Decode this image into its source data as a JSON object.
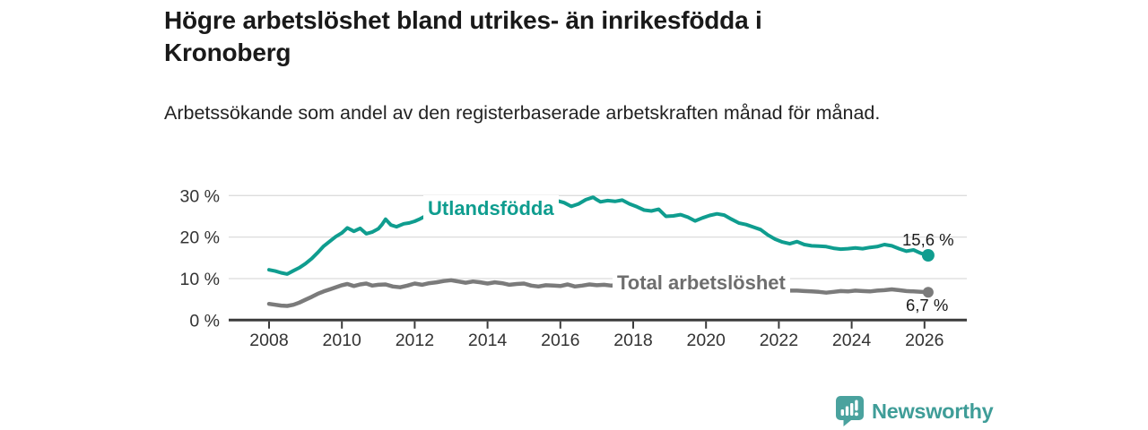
{
  "header": {
    "title": "Högre arbetslöshet bland utrikes- än inrikesfödda i Kronoberg",
    "subtitle": "Arbetssökande som andel av den registerbaserade arbetskraften månad för månad."
  },
  "chart_data": {
    "type": "line",
    "title": "Högre arbetslöshet bland utrikes- än inrikesfödda i Kronoberg",
    "xlabel": "",
    "ylabel": "",
    "unit": "%",
    "grid": "horizontal-gridlines",
    "legend_position": "inline-labels-on-lines",
    "x_axis": {
      "ticks": [
        2008,
        2010,
        2012,
        2014,
        2016,
        2018,
        2020,
        2022,
        2024,
        2026
      ],
      "range_years": [
        2008.0,
        2026.1
      ]
    },
    "y_axis": {
      "ticks": [
        0,
        10,
        20,
        30
      ],
      "tick_labels": [
        "0 %",
        "10 %",
        "20 %",
        "30 %"
      ],
      "ylim": [
        0,
        32
      ]
    },
    "series": [
      {
        "name": "Utlandsfödda",
        "color": "#0f9d8f",
        "line_width": 4,
        "dot_radius": 7,
        "end_value": 15.6,
        "end_label": "15,6 %",
        "points": [
          [
            2008.0,
            12.1
          ],
          [
            2008.17,
            11.8
          ],
          [
            2008.33,
            11.4
          ],
          [
            2008.5,
            11.1
          ],
          [
            2008.67,
            11.9
          ],
          [
            2008.83,
            12.6
          ],
          [
            2009.0,
            13.6
          ],
          [
            2009.17,
            14.8
          ],
          [
            2009.33,
            16.2
          ],
          [
            2009.5,
            17.8
          ],
          [
            2009.67,
            19.0
          ],
          [
            2009.83,
            20.1
          ],
          [
            2010.0,
            21.0
          ],
          [
            2010.15,
            22.2
          ],
          [
            2010.33,
            21.4
          ],
          [
            2010.5,
            22.1
          ],
          [
            2010.67,
            20.8
          ],
          [
            2010.83,
            21.2
          ],
          [
            2011.0,
            22.0
          ],
          [
            2011.1,
            23.0
          ],
          [
            2011.2,
            24.3
          ],
          [
            2011.35,
            22.9
          ],
          [
            2011.5,
            22.5
          ],
          [
            2011.7,
            23.2
          ],
          [
            2011.85,
            23.4
          ],
          [
            2012.0,
            23.8
          ],
          [
            2012.15,
            24.4
          ],
          [
            2012.3,
            25.1
          ],
          [
            2012.4,
            25.8
          ],
          [
            2012.5,
            24.7
          ],
          [
            2012.7,
            25.0
          ],
          [
            2012.9,
            25.2
          ],
          [
            2013.1,
            25.4
          ],
          [
            2013.3,
            25.1
          ],
          [
            2013.5,
            25.6
          ],
          [
            2013.7,
            25.4
          ],
          [
            2013.9,
            25.9
          ],
          [
            2014.1,
            26.2
          ],
          [
            2014.3,
            26.0
          ],
          [
            2014.5,
            26.5
          ],
          [
            2014.7,
            26.3
          ],
          [
            2014.9,
            26.8
          ],
          [
            2015.1,
            27.2
          ],
          [
            2015.3,
            27.0
          ],
          [
            2015.5,
            27.6
          ],
          [
            2015.7,
            28.1
          ],
          [
            2015.9,
            28.8
          ],
          [
            2016.1,
            28.3
          ],
          [
            2016.3,
            27.4
          ],
          [
            2016.5,
            28.0
          ],
          [
            2016.7,
            29.0
          ],
          [
            2016.9,
            29.6
          ],
          [
            2017.0,
            29.0
          ],
          [
            2017.1,
            28.5
          ],
          [
            2017.3,
            28.8
          ],
          [
            2017.5,
            28.6
          ],
          [
            2017.7,
            28.9
          ],
          [
            2017.9,
            28.0
          ],
          [
            2018.1,
            27.3
          ],
          [
            2018.3,
            26.5
          ],
          [
            2018.5,
            26.3
          ],
          [
            2018.7,
            26.7
          ],
          [
            2018.9,
            25.0
          ],
          [
            2019.1,
            25.1
          ],
          [
            2019.3,
            25.4
          ],
          [
            2019.5,
            24.8
          ],
          [
            2019.7,
            23.9
          ],
          [
            2019.9,
            24.6
          ],
          [
            2020.1,
            25.2
          ],
          [
            2020.3,
            25.6
          ],
          [
            2020.5,
            25.3
          ],
          [
            2020.7,
            24.3
          ],
          [
            2020.9,
            23.4
          ],
          [
            2021.1,
            23.0
          ],
          [
            2021.3,
            22.4
          ],
          [
            2021.5,
            21.8
          ],
          [
            2021.7,
            20.5
          ],
          [
            2021.9,
            19.5
          ],
          [
            2022.1,
            18.8
          ],
          [
            2022.3,
            18.4
          ],
          [
            2022.5,
            18.9
          ],
          [
            2022.7,
            18.2
          ],
          [
            2022.9,
            17.9
          ],
          [
            2023.1,
            17.8
          ],
          [
            2023.3,
            17.7
          ],
          [
            2023.5,
            17.3
          ],
          [
            2023.7,
            17.1
          ],
          [
            2023.9,
            17.2
          ],
          [
            2024.1,
            17.4
          ],
          [
            2024.3,
            17.2
          ],
          [
            2024.5,
            17.5
          ],
          [
            2024.7,
            17.7
          ],
          [
            2024.9,
            18.2
          ],
          [
            2025.1,
            17.9
          ],
          [
            2025.3,
            17.2
          ],
          [
            2025.5,
            16.6
          ],
          [
            2025.7,
            16.9
          ],
          [
            2025.9,
            16.1
          ],
          [
            2026.1,
            15.6
          ]
        ]
      },
      {
        "name": "Total arbetslöshet",
        "color": "#7b7b7b",
        "line_width": 4.5,
        "dot_radius": 6,
        "end_value": 6.7,
        "end_label": "6,7 %",
        "points": [
          [
            2008.0,
            3.9
          ],
          [
            2008.17,
            3.7
          ],
          [
            2008.33,
            3.5
          ],
          [
            2008.5,
            3.4
          ],
          [
            2008.67,
            3.7
          ],
          [
            2008.83,
            4.2
          ],
          [
            2009.0,
            4.9
          ],
          [
            2009.17,
            5.6
          ],
          [
            2009.33,
            6.3
          ],
          [
            2009.5,
            6.9
          ],
          [
            2009.67,
            7.4
          ],
          [
            2009.83,
            7.9
          ],
          [
            2010.0,
            8.4
          ],
          [
            2010.15,
            8.7
          ],
          [
            2010.33,
            8.2
          ],
          [
            2010.5,
            8.6
          ],
          [
            2010.67,
            8.8
          ],
          [
            2010.83,
            8.3
          ],
          [
            2011.0,
            8.5
          ],
          [
            2011.2,
            8.6
          ],
          [
            2011.4,
            8.1
          ],
          [
            2011.6,
            7.9
          ],
          [
            2011.8,
            8.3
          ],
          [
            2012.0,
            8.8
          ],
          [
            2012.2,
            8.5
          ],
          [
            2012.4,
            8.9
          ],
          [
            2012.6,
            9.1
          ],
          [
            2012.8,
            9.4
          ],
          [
            2013.0,
            9.6
          ],
          [
            2013.2,
            9.3
          ],
          [
            2013.4,
            9.0
          ],
          [
            2013.6,
            9.3
          ],
          [
            2013.8,
            9.1
          ],
          [
            2014.0,
            8.8
          ],
          [
            2014.2,
            9.1
          ],
          [
            2014.4,
            8.9
          ],
          [
            2014.6,
            8.5
          ],
          [
            2014.8,
            8.7
          ],
          [
            2015.0,
            8.8
          ],
          [
            2015.2,
            8.3
          ],
          [
            2015.4,
            8.1
          ],
          [
            2015.6,
            8.4
          ],
          [
            2015.8,
            8.3
          ],
          [
            2016.0,
            8.2
          ],
          [
            2016.2,
            8.6
          ],
          [
            2016.4,
            8.1
          ],
          [
            2016.6,
            8.3
          ],
          [
            2016.8,
            8.6
          ],
          [
            2017.0,
            8.4
          ],
          [
            2017.2,
            8.5
          ],
          [
            2017.4,
            8.3
          ],
          [
            2017.55,
            8.4
          ],
          [
            2017.8,
            8.2
          ],
          [
            2018.0,
            8.0
          ],
          [
            2018.5,
            7.6
          ],
          [
            2019.0,
            7.3
          ],
          [
            2019.5,
            7.1
          ],
          [
            2020.0,
            7.4
          ],
          [
            2020.4,
            8.8
          ],
          [
            2020.8,
            8.5
          ],
          [
            2021.2,
            8.0
          ],
          [
            2021.6,
            7.6
          ],
          [
            2022.0,
            7.2
          ],
          [
            2022.3,
            7.1
          ],
          [
            2022.5,
            7.1
          ],
          [
            2022.7,
            7.0
          ],
          [
            2022.9,
            6.9
          ],
          [
            2023.1,
            6.8
          ],
          [
            2023.3,
            6.6
          ],
          [
            2023.5,
            6.8
          ],
          [
            2023.7,
            7.0
          ],
          [
            2023.9,
            6.9
          ],
          [
            2024.1,
            7.1
          ],
          [
            2024.3,
            7.0
          ],
          [
            2024.5,
            6.9
          ],
          [
            2024.7,
            7.1
          ],
          [
            2024.9,
            7.2
          ],
          [
            2025.1,
            7.4
          ],
          [
            2025.3,
            7.2
          ],
          [
            2025.5,
            7.0
          ],
          [
            2025.7,
            6.9
          ],
          [
            2025.9,
            6.8
          ],
          [
            2026.1,
            6.7
          ]
        ]
      }
    ]
  },
  "footer": {
    "brand": "Newsworthy",
    "logo_icon": "bar-chart-speech-bubble-icon"
  },
  "colors": {
    "teal_line": "#0f9d8f",
    "gray_line": "#7b7b7b",
    "gray_label": "#6e6e6e",
    "logo_teal": "#4aa29e",
    "wordmark_teal": "#3f9d98",
    "gridline": "#dcdcdc",
    "axis": "#3b3b3b",
    "tick_text": "#333333",
    "title_text": "#191919"
  }
}
